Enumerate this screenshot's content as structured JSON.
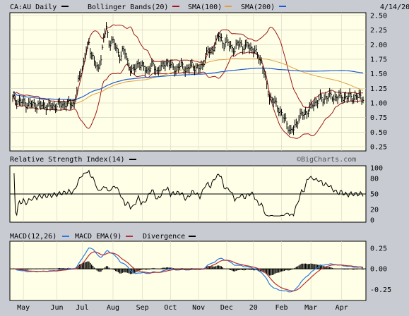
{
  "header": {
    "symbol": "CA:AU Daily",
    "bollinger": "Bollinger Bands(20)",
    "sma100": "SMA(100)",
    "sma200": "SMA(200)",
    "date": "4/14/20"
  },
  "colors": {
    "background": "#c8cbd2",
    "panel": "#ffffe7",
    "price": "#000000",
    "bollinger": "#a01818",
    "sma100": "#e0a040",
    "sma200": "#1e5ad2",
    "macd": "#2a7ae2",
    "macd_ema": "#b43232",
    "divergence": "#000000"
  },
  "chart_data": [
    {
      "type": "line",
      "panel": "price",
      "y_ticks": [
        "2.50",
        "2.25",
        "2.00",
        "1.75",
        "1.50",
        "1.25",
        "1.00",
        "0.75",
        "0.50",
        "0.25"
      ],
      "ylim": [
        0.25,
        2.5
      ],
      "x_labels": [
        "May",
        "Jun",
        "Jul",
        "Aug",
        "Sep",
        "Oct",
        "Nov",
        "Dec",
        "20",
        "Feb",
        "Mar",
        "Apr"
      ],
      "series": [
        {
          "name": "Price",
          "x": [
            0,
            4,
            8,
            12,
            16,
            20,
            24,
            28,
            32,
            36,
            40,
            44,
            46,
            47,
            48,
            49,
            50,
            51,
            52,
            53,
            54,
            55,
            56,
            57,
            58,
            60,
            62,
            64,
            66,
            68,
            70,
            72,
            74,
            76,
            78,
            80,
            82,
            84,
            86,
            88,
            90,
            92,
            94,
            96,
            98,
            100,
            102,
            104,
            106,
            108,
            110,
            112,
            114,
            116,
            118,
            120,
            122,
            124,
            126,
            128,
            130,
            132,
            134,
            136,
            138,
            140,
            142,
            144,
            146,
            148,
            150,
            152,
            154,
            156,
            158,
            160,
            162,
            164,
            166,
            168,
            170,
            172,
            174,
            176,
            178,
            180,
            182,
            184,
            186,
            188,
            190,
            192,
            194,
            196,
            198,
            200,
            202,
            204,
            206,
            208,
            210,
            212,
            214,
            216,
            218,
            220,
            222,
            224,
            226,
            228,
            230,
            232,
            234,
            236,
            238,
            240,
            241,
            242,
            243,
            244,
            245,
            246,
            247,
            248,
            249,
            250,
            251,
            252,
            253,
            254,
            255,
            256,
            257,
            258,
            259,
            260,
            261,
            262
          ],
          "y": [
            1.08,
            1.03,
            1.0,
            0.98,
            0.97,
            0.96,
            0.95,
            0.94,
            0.95,
            0.97,
            0.98,
            0.99,
            1.0,
            1.1,
            1.2,
            1.35,
            1.45,
            1.55,
            1.6,
            1.7,
            1.8,
            1.9,
            1.95,
            2.0,
            1.9,
            1.8,
            1.65,
            1.55,
            1.8,
            2.1,
            2.3,
            2.0,
            2.1,
            2.0,
            1.9,
            1.8,
            1.9,
            1.85,
            1.7,
            1.6,
            1.55,
            1.6,
            1.7,
            1.65,
            1.6,
            1.55,
            1.6,
            1.65,
            1.6,
            1.55,
            1.6,
            1.62,
            1.68,
            1.7,
            1.65,
            1.6,
            1.58,
            1.62,
            1.65,
            1.6,
            1.58,
            1.6,
            1.65,
            1.62,
            1.6,
            1.58,
            1.65,
            1.8,
            1.9,
            1.85,
            1.95,
            2.05,
            2.15,
            2.1,
            2.0,
            2.05,
            2.0,
            1.95,
            1.9,
            2.0,
            2.05,
            1.95,
            1.95,
            2.0,
            1.95,
            1.9,
            1.85,
            1.8,
            1.7,
            1.5,
            1.3,
            1.1,
            1.05,
            1.0,
            0.95,
            0.85,
            0.75,
            0.7,
            0.6,
            0.5,
            0.55,
            0.65,
            0.75,
            0.8,
            0.8,
            0.85,
            0.9,
            0.95,
            1.0,
            1.05,
            1.08,
            1.05,
            1.1,
            1.12,
            1.1,
            1.1,
            1.1,
            1.1,
            1.1,
            1.1,
            1.1,
            1.1,
            1.1,
            1.1,
            1.1,
            1.1,
            1.1,
            1.1,
            1.1,
            1.1,
            1.1,
            1.1,
            1.1,
            1.1,
            1.1,
            1.1,
            1.1,
            1.1
          ]
        }
      ]
    },
    {
      "type": "line",
      "panel": "rsi",
      "title": "Relative Strength Index(14)",
      "watermark": "©BigCharts.com",
      "y_ticks": [
        "100",
        "80",
        "50",
        "20",
        "0"
      ],
      "ylim": [
        0,
        100
      ]
    },
    {
      "type": "line",
      "panel": "macd",
      "title": "MACD(12,26)",
      "ema_label": "MACD EMA(9)",
      "divergence_label": "Divergence",
      "y_ticks": [
        "0.25",
        "0.00",
        "-0.25"
      ],
      "ylim": [
        -0.35,
        0.3
      ]
    }
  ]
}
